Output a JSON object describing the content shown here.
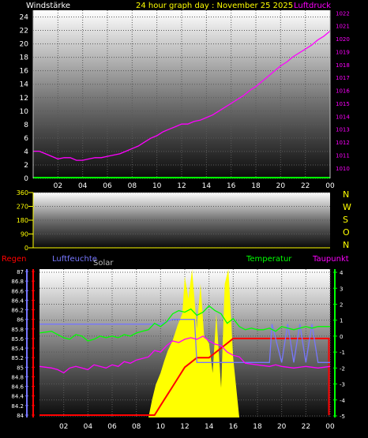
{
  "header": {
    "left_label": "Windstärke",
    "title": "24 hour graph day : November 25 2025",
    "right_label": "Luftdruck"
  },
  "colors": {
    "wind": "#00ff00",
    "pressure": "#ff00ff",
    "axis_right_pressure": "#ff00ff",
    "direction_text": "#ffff00",
    "rain": "#ff0000",
    "humidity": "#7777ff",
    "solar": "#ffff00",
    "temperature": "#00ff00",
    "dewpoint": "#ff00ff",
    "title": "#ffff00"
  },
  "chart_data": [
    {
      "type": "line",
      "name": "top-panel",
      "x_ticks": [
        "02",
        "04",
        "06",
        "08",
        "10",
        "12",
        "14",
        "16",
        "18",
        "20",
        "22",
        "00"
      ],
      "left_axis": {
        "ticks": [
          0,
          2,
          4,
          6,
          8,
          10,
          12,
          14,
          16,
          18,
          20,
          22,
          24
        ],
        "ylim": [
          0,
          25
        ]
      },
      "right_axis": {
        "ticks": [
          1010,
          1011,
          1012,
          1013,
          1014,
          1015,
          1016,
          1017,
          1018,
          1019,
          1020,
          1021,
          1022
        ],
        "ylim": [
          1009.2,
          1022.2
        ]
      },
      "series": [
        {
          "name": "Windstärke",
          "axis": "left",
          "x": [
            0,
            24
          ],
          "y": [
            0.1,
            0.1
          ]
        },
        {
          "name": "Luftdruck",
          "axis": "right",
          "x": [
            0,
            0.5,
            1,
            1.5,
            2,
            2.5,
            3,
            3.5,
            4,
            4.5,
            5,
            5.5,
            6,
            6.5,
            7,
            7.5,
            8,
            8.5,
            9,
            9.5,
            10,
            10.5,
            11,
            11.5,
            12,
            12.5,
            13,
            13.5,
            14,
            14.5,
            15,
            15.5,
            16,
            16.5,
            17,
            17.5,
            18,
            18.5,
            19,
            19.5,
            20,
            20.5,
            21,
            21.5,
            22,
            22.5,
            23,
            23.5,
            24
          ],
          "y": [
            1011.3,
            1011.3,
            1011.1,
            1010.9,
            1010.7,
            1010.8,
            1010.8,
            1010.6,
            1010.6,
            1010.7,
            1010.8,
            1010.8,
            1010.9,
            1011.0,
            1011.1,
            1011.3,
            1011.5,
            1011.7,
            1012.0,
            1012.3,
            1012.5,
            1012.8,
            1013.0,
            1013.2,
            1013.4,
            1013.4,
            1013.6,
            1013.7,
            1013.9,
            1014.1,
            1014.4,
            1014.7,
            1015.0,
            1015.3,
            1015.6,
            1016.0,
            1016.3,
            1016.7,
            1017.1,
            1017.5,
            1017.9,
            1018.2,
            1018.6,
            1018.9,
            1019.2,
            1019.5,
            1019.9,
            1020.2,
            1020.6
          ]
        }
      ]
    },
    {
      "type": "line",
      "name": "wind-direction-panel",
      "left_axis": {
        "ticks": [
          0,
          90,
          180,
          270,
          360
        ],
        "ylim": [
          0,
          360
        ]
      },
      "right_labels": [
        "N",
        "W",
        "S",
        "O",
        "N"
      ],
      "series": []
    },
    {
      "type": "line",
      "name": "bottom-panel",
      "x_ticks": [
        "02",
        "04",
        "06",
        "08",
        "10",
        "12",
        "14",
        "16",
        "18",
        "20",
        "22",
        "00"
      ],
      "legend": [
        "Regen",
        "Luftfeuchte",
        "Solar",
        "Temperatur",
        "Taupunkt"
      ],
      "left_axis": {
        "ticks": [
          84,
          84.2,
          84.4,
          84.6,
          84.8,
          85,
          85.2,
          85.4,
          85.6,
          85.8,
          86,
          86.2,
          86.4,
          86.6,
          86.8,
          87
        ],
        "ylim": [
          83.95,
          87.05
        ]
      },
      "right_axis": {
        "ticks": [
          -5,
          -4,
          -3,
          -2,
          -1,
          0,
          1,
          2,
          3,
          4
        ],
        "ylim": [
          -5.1,
          4.2
        ]
      },
      "series": [
        {
          "name": "Solar",
          "axis": "percent",
          "x": [
            0,
            9,
            9.3,
            9.6,
            10,
            10.3,
            10.6,
            11,
            11.4,
            11.8,
            12,
            12.3,
            12.6,
            13,
            13.3,
            13.6,
            14,
            14.3,
            14.6,
            15,
            15.3,
            15.6,
            16,
            16.5,
            24
          ],
          "y": [
            0,
            0,
            0.12,
            0.22,
            0.3,
            0.38,
            0.45,
            0.52,
            0.62,
            0.7,
            0.95,
            0.8,
            1.0,
            0.6,
            0.9,
            0.55,
            0.5,
            0.3,
            0.7,
            0.2,
            0.9,
            1.0,
            0.4,
            0,
            0
          ]
        },
        {
          "name": "Regen",
          "axis": "left",
          "x": [
            0,
            9.5,
            10,
            10.5,
            11,
            11.5,
            12,
            12.5,
            13,
            13.5,
            14,
            14.5,
            15,
            15.5,
            16,
            23.9,
            23.9
          ],
          "y": [
            84,
            84,
            84.2,
            84.4,
            84.6,
            84.8,
            85.0,
            85.1,
            85.2,
            85.2,
            85.2,
            85.3,
            85.4,
            85.5,
            85.6,
            85.6,
            84
          ]
        },
        {
          "name": "Luftfeuchte",
          "axis": "left",
          "x": [
            0,
            2,
            4,
            6,
            8,
            10,
            10.5,
            11,
            12,
            12.8,
            13,
            13.5,
            14,
            15,
            15.5,
            16,
            17,
            18,
            19,
            19.2,
            20,
            20.5,
            21,
            21.5,
            22,
            22.5,
            23,
            24
          ],
          "y": [
            85.9,
            85.9,
            85.9,
            85.9,
            85.9,
            85.9,
            85.95,
            86.0,
            86.0,
            86.0,
            85.1,
            85.1,
            85.1,
            85.1,
            85.1,
            85.1,
            85.1,
            85.1,
            85.1,
            85.9,
            85.1,
            85.9,
            85.1,
            85.9,
            85.1,
            85.9,
            85.1,
            85.1
          ]
        },
        {
          "name": "Temperatur",
          "axis": "right",
          "x": [
            0,
            1,
            1.5,
            2,
            2.5,
            3,
            3.5,
            4,
            4.5,
            5,
            5.5,
            6,
            6.5,
            7,
            7.5,
            8,
            8.5,
            9,
            9.5,
            10,
            10.5,
            11,
            11.5,
            12,
            12.5,
            13,
            13.5,
            14,
            14.5,
            15,
            15.5,
            16,
            16.5,
            17,
            17.5,
            18,
            18.5,
            19,
            19.5,
            20,
            20.5,
            21,
            21.5,
            22,
            22.5,
            23,
            24
          ],
          "y": [
            0.2,
            0.3,
            0.1,
            -0.1,
            -0.2,
            0.1,
            0.0,
            -0.3,
            -0.2,
            0.0,
            -0.1,
            0.0,
            -0.1,
            0.1,
            0.0,
            0.2,
            0.3,
            0.4,
            0.8,
            0.6,
            0.9,
            1.4,
            1.6,
            1.5,
            1.7,
            1.3,
            1.5,
            1.9,
            1.6,
            1.4,
            0.8,
            1.1,
            0.6,
            0.4,
            0.5,
            0.4,
            0.4,
            0.5,
            0.3,
            0.6,
            0.5,
            0.4,
            0.5,
            0.6,
            0.5,
            0.6,
            0.6
          ]
        },
        {
          "name": "Taupunkt",
          "axis": "right",
          "x": [
            0,
            1,
            1.5,
            2,
            2.5,
            3,
            3.5,
            4,
            4.5,
            5,
            5.5,
            6,
            6.5,
            7,
            7.5,
            8,
            8.5,
            9,
            9.5,
            10,
            10.5,
            11,
            11.5,
            12,
            12.5,
            13,
            13.5,
            14,
            14.5,
            15,
            15.5,
            16,
            16.5,
            17,
            18,
            19,
            19.5,
            20,
            21,
            22,
            23,
            24
          ],
          "y": [
            -1.9,
            -2.0,
            -2.1,
            -2.3,
            -2.0,
            -1.9,
            -2.0,
            -2.1,
            -1.8,
            -1.9,
            -2.0,
            -1.8,
            -1.9,
            -1.6,
            -1.7,
            -1.5,
            -1.4,
            -1.3,
            -0.9,
            -1.0,
            -0.6,
            -0.3,
            -0.4,
            -0.2,
            -0.1,
            -0.2,
            0.0,
            -0.3,
            -0.5,
            -0.6,
            -1.0,
            -1.2,
            -1.3,
            -1.7,
            -1.8,
            -1.9,
            -1.8,
            -1.9,
            -2.0,
            -1.9,
            -2.0,
            -1.9
          ]
        }
      ]
    }
  ]
}
